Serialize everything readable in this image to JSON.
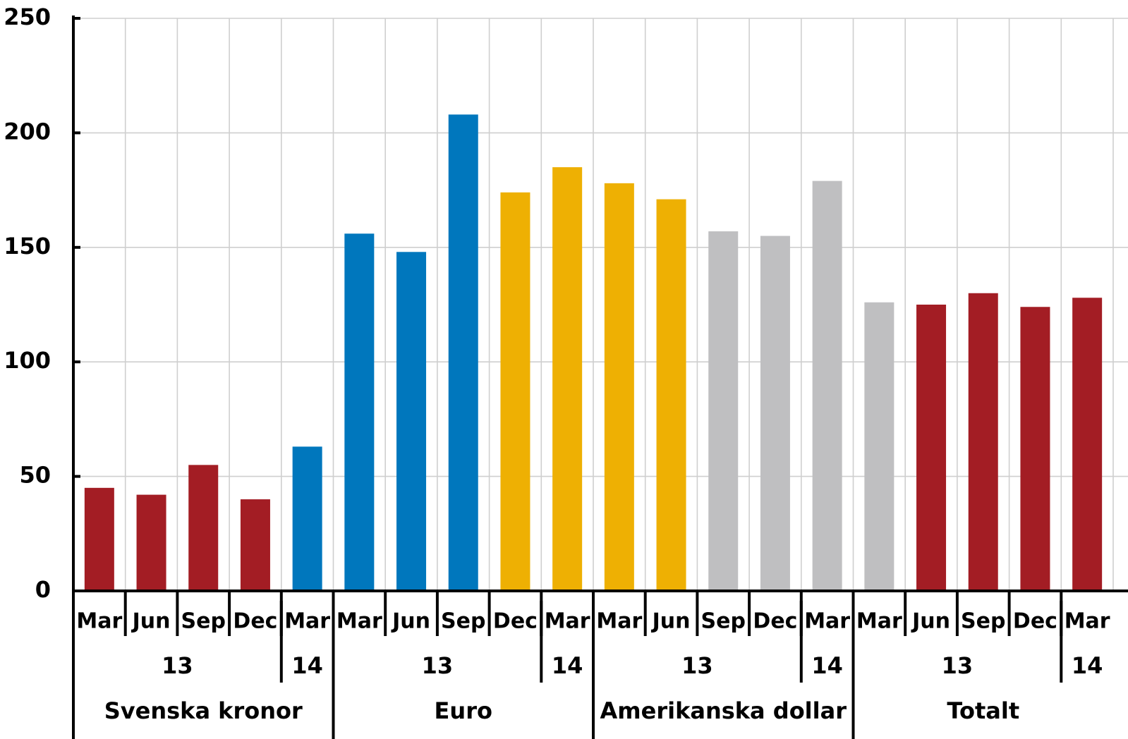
{
  "chart_data": {
    "type": "bar",
    "title": "",
    "xlabel": "",
    "ylabel": "",
    "ylim": [
      0,
      250
    ],
    "yticks": [
      0,
      50,
      100,
      150,
      200,
      250
    ],
    "grid": true,
    "legend": "none",
    "colors": {
      "red": "#a31d24",
      "blue": "#0077bd",
      "yellow": "#eeb003",
      "gray": "#bfbfc1"
    },
    "groups": [
      {
        "name": "Svenska kronor",
        "bars": [
          {
            "month": "Mar",
            "year": "13",
            "value": 45,
            "color": "red"
          },
          {
            "month": "Jun",
            "year": "13",
            "value": 42,
            "color": "red"
          },
          {
            "month": "Sep",
            "year": "13",
            "value": 55,
            "color": "red"
          },
          {
            "month": "Dec",
            "year": "13",
            "value": 40,
            "color": "red"
          },
          {
            "month": "Mar",
            "year": "14",
            "value": 63,
            "color": "blue"
          }
        ],
        "year_labels": [
          {
            "label": "13",
            "start": 0,
            "end": 3
          },
          {
            "label": "14",
            "start": 4,
            "end": 4
          }
        ]
      },
      {
        "name": "Euro",
        "bars": [
          {
            "month": "Mar",
            "year": "13",
            "value": 156,
            "color": "blue"
          },
          {
            "month": "Jun",
            "year": "13",
            "value": 148,
            "color": "blue"
          },
          {
            "month": "Sep",
            "year": "13",
            "value": 208,
            "color": "blue"
          },
          {
            "month": "Dec",
            "year": "13",
            "value": 174,
            "color": "yellow"
          },
          {
            "month": "Mar",
            "year": "14",
            "value": 185,
            "color": "yellow"
          }
        ],
        "year_labels": [
          {
            "label": "13",
            "start": 0,
            "end": 3
          },
          {
            "label": "14",
            "start": 4,
            "end": 4
          }
        ]
      },
      {
        "name": "Amerikanska dollar",
        "bars": [
          {
            "month": "Mar",
            "year": "13",
            "value": 178,
            "color": "yellow"
          },
          {
            "month": "Jun",
            "year": "13",
            "value": 171,
            "color": "yellow"
          },
          {
            "month": "Sep",
            "year": "13",
            "value": 157,
            "color": "gray"
          },
          {
            "month": "Dec",
            "year": "13",
            "value": 155,
            "color": "gray"
          },
          {
            "month": "Mar",
            "year": "14",
            "value": 179,
            "color": "gray"
          }
        ],
        "year_labels": [
          {
            "label": "13",
            "start": 0,
            "end": 3
          },
          {
            "label": "14",
            "start": 4,
            "end": 4
          }
        ]
      },
      {
        "name": "Totalt",
        "bars": [
          {
            "month": "Mar",
            "year": "13",
            "value": 126,
            "color": "gray"
          },
          {
            "month": "Jun",
            "year": "13",
            "value": 125,
            "color": "red"
          },
          {
            "month": "Sep",
            "year": "13",
            "value": 130,
            "color": "red"
          },
          {
            "month": "Dec",
            "year": "13",
            "value": 124,
            "color": "red"
          },
          {
            "month": "Mar",
            "year": "14",
            "value": 128,
            "color": "red"
          }
        ],
        "year_labels": [
          {
            "label": "13",
            "start": 0,
            "end": 3
          },
          {
            "label": "14",
            "start": 4,
            "end": 4
          }
        ]
      }
    ]
  }
}
